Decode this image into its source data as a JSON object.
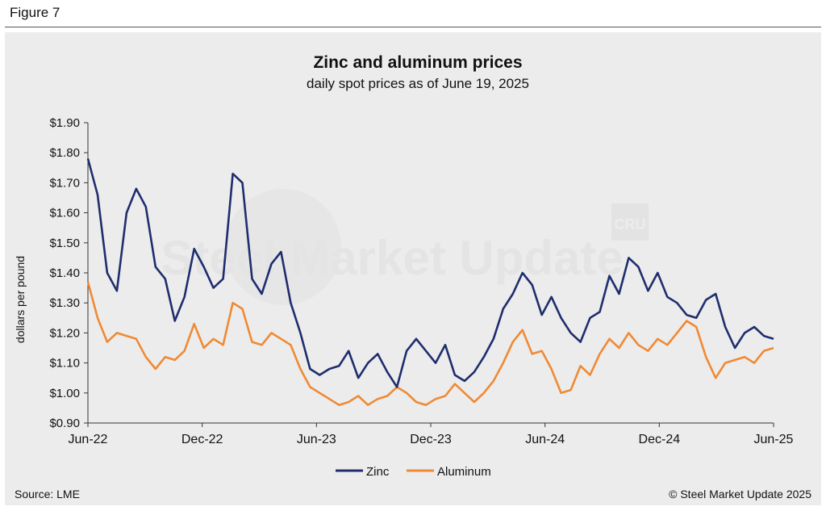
{
  "figure_label": "Figure 7",
  "source": "Source: LME",
  "copyright": "© Steel Market Update 2025",
  "watermark": "Steel Market Update",
  "watermark_badge": "CRU",
  "colors": {
    "zinc": "#1f2d6e",
    "aluminum": "#ef8a34",
    "panel": "#ececec",
    "axis": "#333333"
  },
  "chart_data": {
    "type": "line",
    "title": "Zinc and aluminum prices",
    "subtitle": "daily spot prices as of June 19, 2025",
    "ylabel": "dollars per pound",
    "xlabel": "",
    "ylim": [
      0.9,
      1.9
    ],
    "yticks": [
      "$0.90",
      "$1.00",
      "$1.10",
      "$1.20",
      "$1.30",
      "$1.40",
      "$1.50",
      "$1.60",
      "$1.70",
      "$1.80",
      "$1.90"
    ],
    "ytick_values": [
      0.9,
      1.0,
      1.1,
      1.2,
      1.3,
      1.4,
      1.5,
      1.6,
      1.7,
      1.8,
      1.9
    ],
    "x_range": [
      "Jun-22",
      "Jun-25"
    ],
    "xticks": [
      "Jun-22",
      "Dec-22",
      "Jun-23",
      "Dec-23",
      "Jun-24",
      "Dec-24",
      "Jun-25"
    ],
    "legend_position": "bottom-center",
    "grid": false,
    "series": [
      {
        "name": "Zinc",
        "x": [
          "Jun-22",
          "Jul-22",
          "Jul-22",
          "Aug-22",
          "Aug-22",
          "Sep-22",
          "Sep-22",
          "Oct-22",
          "Oct-22",
          "Nov-22",
          "Nov-22",
          "Dec-22",
          "Dec-22",
          "Jan-23",
          "Jan-23",
          "Feb-23",
          "Feb-23",
          "Mar-23",
          "Mar-23",
          "Apr-23",
          "Apr-23",
          "May-23",
          "May-23",
          "Jun-23",
          "Jun-23",
          "Jul-23",
          "Jul-23",
          "Aug-23",
          "Aug-23",
          "Sep-23",
          "Sep-23",
          "Oct-23",
          "Oct-23",
          "Nov-23",
          "Nov-23",
          "Dec-23",
          "Dec-23",
          "Jan-24",
          "Jan-24",
          "Feb-24",
          "Feb-24",
          "Mar-24",
          "Mar-24",
          "Apr-24",
          "Apr-24",
          "May-24",
          "May-24",
          "Jun-24",
          "Jun-24",
          "Jul-24",
          "Jul-24",
          "Aug-24",
          "Aug-24",
          "Sep-24",
          "Sep-24",
          "Oct-24",
          "Oct-24",
          "Nov-24",
          "Nov-24",
          "Dec-24",
          "Dec-24",
          "Jan-25",
          "Jan-25",
          "Feb-25",
          "Feb-25",
          "Mar-25",
          "Mar-25",
          "Apr-25",
          "Apr-25",
          "May-25",
          "May-25",
          "Jun-25"
        ],
        "values": [
          1.78,
          1.66,
          1.4,
          1.34,
          1.6,
          1.68,
          1.62,
          1.42,
          1.38,
          1.24,
          1.32,
          1.48,
          1.42,
          1.35,
          1.38,
          1.73,
          1.7,
          1.38,
          1.33,
          1.43,
          1.47,
          1.3,
          1.2,
          1.08,
          1.06,
          1.08,
          1.09,
          1.14,
          1.05,
          1.1,
          1.13,
          1.07,
          1.02,
          1.14,
          1.18,
          1.14,
          1.1,
          1.16,
          1.06,
          1.04,
          1.07,
          1.12,
          1.18,
          1.28,
          1.33,
          1.4,
          1.36,
          1.26,
          1.32,
          1.25,
          1.2,
          1.17,
          1.25,
          1.27,
          1.39,
          1.33,
          1.45,
          1.42,
          1.34,
          1.4,
          1.32,
          1.3,
          1.26,
          1.25,
          1.31,
          1.33,
          1.22,
          1.15,
          1.2,
          1.22,
          1.19,
          1.18
        ]
      },
      {
        "name": "Aluminum",
        "x": [
          "Jun-22",
          "Jul-22",
          "Jul-22",
          "Aug-22",
          "Aug-22",
          "Sep-22",
          "Sep-22",
          "Oct-22",
          "Oct-22",
          "Nov-22",
          "Nov-22",
          "Dec-22",
          "Dec-22",
          "Jan-23",
          "Jan-23",
          "Feb-23",
          "Feb-23",
          "Mar-23",
          "Mar-23",
          "Apr-23",
          "Apr-23",
          "May-23",
          "May-23",
          "Jun-23",
          "Jun-23",
          "Jul-23",
          "Jul-23",
          "Aug-23",
          "Aug-23",
          "Sep-23",
          "Sep-23",
          "Oct-23",
          "Oct-23",
          "Nov-23",
          "Nov-23",
          "Dec-23",
          "Dec-23",
          "Jan-24",
          "Jan-24",
          "Feb-24",
          "Feb-24",
          "Mar-24",
          "Mar-24",
          "Apr-24",
          "Apr-24",
          "May-24",
          "May-24",
          "Jun-24",
          "Jun-24",
          "Jul-24",
          "Jul-24",
          "Aug-24",
          "Aug-24",
          "Sep-24",
          "Sep-24",
          "Oct-24",
          "Oct-24",
          "Nov-24",
          "Nov-24",
          "Dec-24",
          "Dec-24",
          "Jan-25",
          "Jan-25",
          "Feb-25",
          "Feb-25",
          "Mar-25",
          "Mar-25",
          "Apr-25",
          "Apr-25",
          "May-25",
          "May-25",
          "Jun-25"
        ],
        "values": [
          1.37,
          1.25,
          1.17,
          1.2,
          1.19,
          1.18,
          1.12,
          1.08,
          1.12,
          1.11,
          1.14,
          1.23,
          1.15,
          1.18,
          1.16,
          1.3,
          1.28,
          1.17,
          1.16,
          1.2,
          1.18,
          1.16,
          1.08,
          1.02,
          1.0,
          0.98,
          0.96,
          0.97,
          0.99,
          0.96,
          0.98,
          0.99,
          1.02,
          1.0,
          0.97,
          0.96,
          0.98,
          0.99,
          1.03,
          1.0,
          0.97,
          1.0,
          1.04,
          1.1,
          1.17,
          1.21,
          1.13,
          1.14,
          1.08,
          1.0,
          1.01,
          1.09,
          1.06,
          1.13,
          1.18,
          1.15,
          1.2,
          1.16,
          1.14,
          1.18,
          1.16,
          1.2,
          1.24,
          1.22,
          1.12,
          1.05,
          1.1,
          1.11,
          1.12,
          1.1,
          1.14,
          1.15
        ]
      }
    ]
  }
}
